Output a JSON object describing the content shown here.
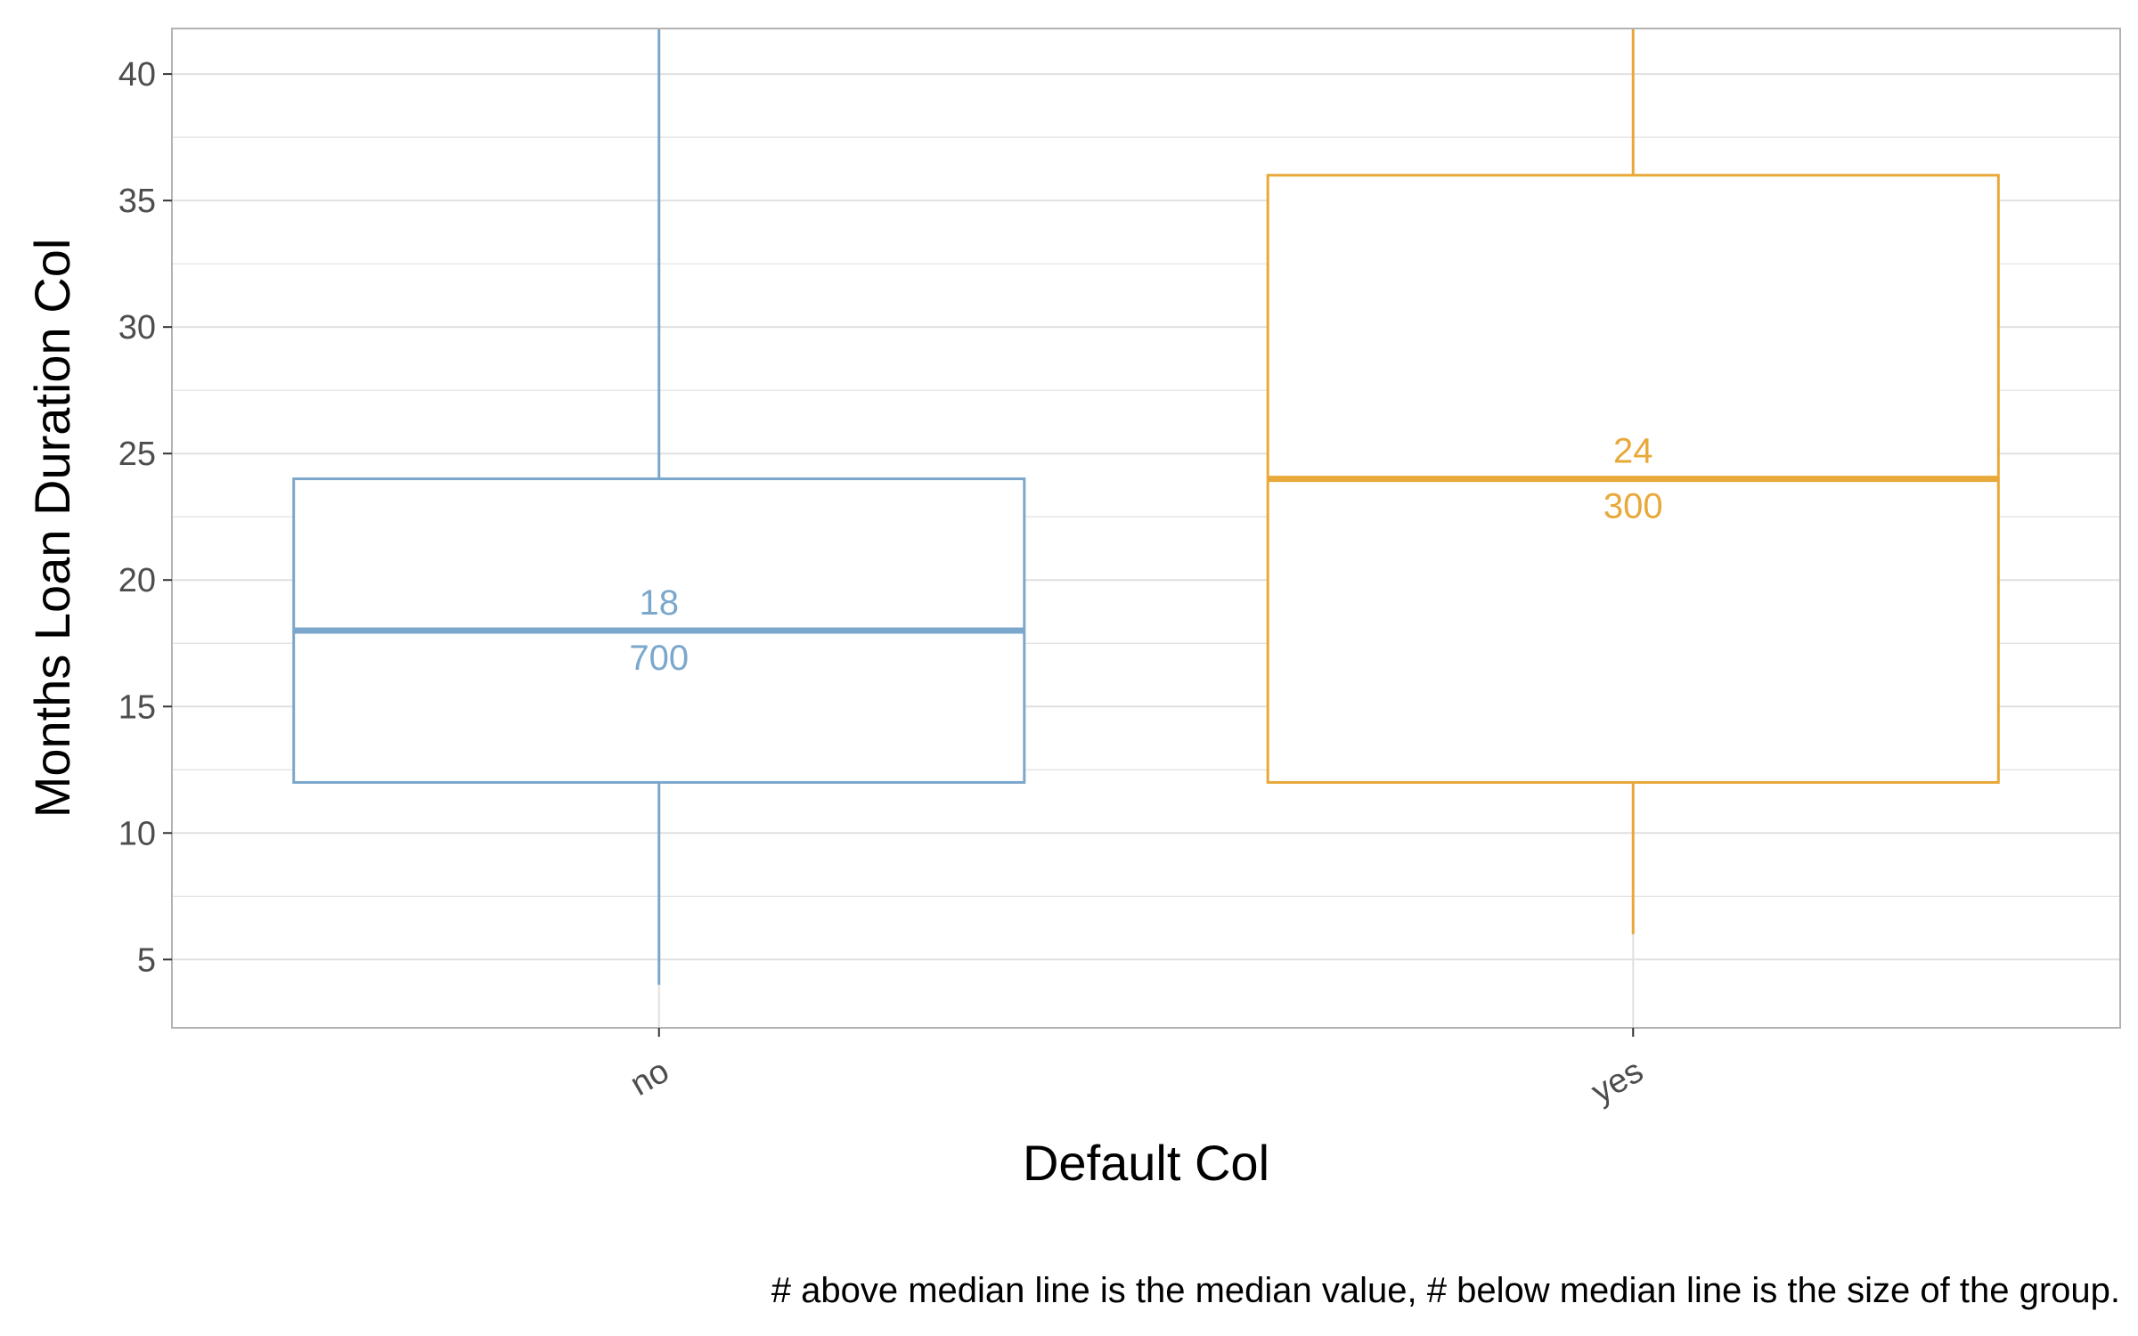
{
  "chart_data": {
    "type": "boxplot",
    "xlabel": "Default Col",
    "ylabel": "Months Loan Duration Col",
    "caption": "# above median line is the median value, # below median line is the size of the group.",
    "categories": [
      "no",
      "yes"
    ],
    "ylim": [
      2.3,
      41.8
    ],
    "yticks": [
      5,
      10,
      15,
      20,
      25,
      30,
      35,
      40
    ],
    "yminor": [
      7.5,
      12.5,
      17.5,
      22.5,
      27.5,
      32.5,
      37.5
    ],
    "grid": true,
    "groups": [
      {
        "category": "no",
        "whisker_low": 4,
        "q1": 12,
        "median": 18,
        "q3": 24,
        "whisker_high": 41.8,
        "n": 700,
        "median_label": "18",
        "n_label": "700",
        "color": "#7BA7CC"
      },
      {
        "category": "yes",
        "whisker_low": 6,
        "q1": 12,
        "median": 24,
        "q3": 36,
        "whisker_high": 41.8,
        "n": 300,
        "median_label": "24",
        "n_label": "300",
        "color": "#E8A93A"
      }
    ],
    "colors": {
      "grid": "#e0e0e0",
      "border": "#b3b3b3",
      "tick_text": "#4d4d4d"
    }
  }
}
